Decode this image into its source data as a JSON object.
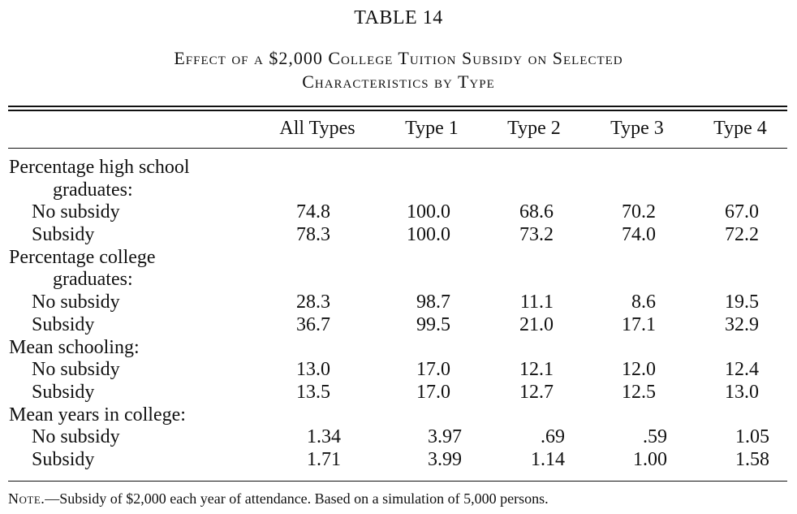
{
  "table": {
    "number": "TABLE 14",
    "caption_line1": "Effect of a $2,000 College Tuition Subsidy on Selected",
    "caption_line2": "Characteristics by Type"
  },
  "columns": [
    "All Types",
    "Type 1",
    "Type 2",
    "Type 3",
    "Type 4"
  ],
  "rows": [
    {
      "label": "Percentage high school",
      "kind": "heading",
      "values": []
    },
    {
      "label": "graduates:",
      "kind": "heading-cont",
      "values": []
    },
    {
      "label": "No subsidy",
      "kind": "data",
      "values": [
        "74.8",
        "100.0",
        "68.6",
        "70.2",
        "67.0"
      ]
    },
    {
      "label": "Subsidy",
      "kind": "data",
      "values": [
        "78.3",
        "100.0",
        "73.2",
        "74.0",
        "72.2"
      ]
    },
    {
      "label": "Percentage college",
      "kind": "heading",
      "values": []
    },
    {
      "label": "graduates:",
      "kind": "heading-cont",
      "values": []
    },
    {
      "label": "No subsidy",
      "kind": "data",
      "values": [
        "28.3",
        "98.7",
        "11.1",
        "8.6",
        "19.5"
      ]
    },
    {
      "label": "Subsidy",
      "kind": "data",
      "values": [
        "36.7",
        "99.5",
        "21.0",
        "17.1",
        "32.9"
      ]
    },
    {
      "label": "Mean schooling:",
      "kind": "heading",
      "values": []
    },
    {
      "label": "No subsidy",
      "kind": "data",
      "values": [
        "13.0",
        "17.0",
        "12.1",
        "12.0",
        "12.4"
      ]
    },
    {
      "label": "Subsidy",
      "kind": "data",
      "values": [
        "13.5",
        "17.0",
        "12.7",
        "12.5",
        "13.0"
      ]
    },
    {
      "label": "Mean years in college:",
      "kind": "heading",
      "values": []
    },
    {
      "label": "No subsidy",
      "kind": "data",
      "values": [
        "1.34",
        "3.97",
        ".69",
        ".59",
        "1.05"
      ]
    },
    {
      "label": "Subsidy",
      "kind": "data",
      "values": [
        "1.71",
        "3.99",
        "1.14",
        "1.00",
        "1.58"
      ]
    }
  ],
  "note": {
    "tag": "Note.",
    "text": "—Subsidy of $2,000 each year of attendance. Based on a simulation of 5,000 persons."
  }
}
